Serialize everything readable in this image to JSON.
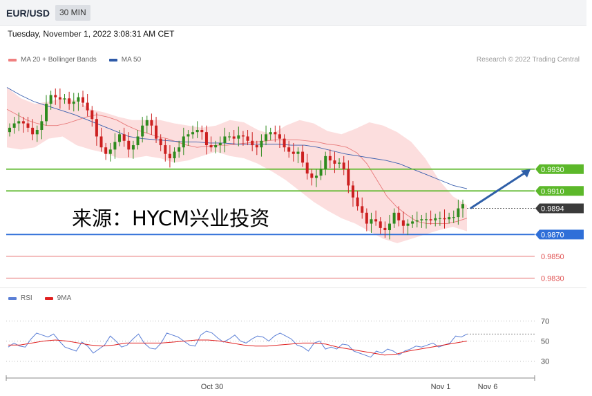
{
  "header": {
    "symbol": "EUR/USD",
    "timeframe": "30 MIN"
  },
  "datetime": "Tuesday, November 1, 2022 3:08:31 AM CET",
  "legend_main": [
    {
      "label": "MA 20 + Bollinger Bands",
      "color": "#f08080"
    },
    {
      "label": "MA 50",
      "color": "#2e5aa8"
    }
  ],
  "credit": "Research © 2022 Trading Central",
  "watermark": "来源：HYCM兴业投资",
  "legend_rsi": [
    {
      "label": "RSI",
      "color": "#5b7fd6"
    },
    {
      "label": "9MA",
      "color": "#e02020"
    }
  ],
  "colors": {
    "up": "#2e8b1e",
    "down": "#cc1f1f",
    "band": "#fbd3d3",
    "green_level": "#5cb82a",
    "blue_level": "#2f6fd8",
    "red_level": "#e05050",
    "current": "#444444"
  },
  "chart_data": [
    {
      "type": "candlestick",
      "ylim": [
        0.9822,
        1.0025
      ],
      "x_tick_labels": [
        "Oct 30",
        "Nov 1",
        "Nov 6"
      ],
      "levels": [
        {
          "value": 0.993,
          "label": "0.9930",
          "kind": "resistance"
        },
        {
          "value": 0.991,
          "label": "0.9910",
          "kind": "resistance"
        },
        {
          "value": 0.9894,
          "label": "0.9894",
          "kind": "current"
        },
        {
          "value": 0.987,
          "label": "0.9870",
          "kind": "pivot"
        },
        {
          "value": 0.985,
          "label": "0.9850",
          "kind": "support"
        },
        {
          "value": 0.983,
          "label": "0.9830",
          "kind": "support"
        }
      ],
      "forecast_arrow": {
        "from": 0.9894,
        "to": 0.993
      },
      "candles_close": [
        0.9968,
        0.9972,
        0.9974,
        0.9972,
        0.9968,
        0.9962,
        0.9966,
        0.9974,
        0.999,
        0.9998,
        0.9996,
        0.9994,
        0.9995,
        0.999,
        0.9992,
        0.9996,
        0.9991,
        0.9984,
        0.9976,
        0.996,
        0.995,
        0.9944,
        0.9948,
        0.9955,
        0.9962,
        0.9956,
        0.9948,
        0.9952,
        0.996,
        0.997,
        0.9975,
        0.997,
        0.9958,
        0.9952,
        0.9944,
        0.994,
        0.9946,
        0.995,
        0.996,
        0.9962,
        0.9964,
        0.9966,
        0.9964,
        0.9952,
        0.995,
        0.9952,
        0.9954,
        0.996,
        0.996,
        0.9958,
        0.9961,
        0.996,
        0.9956,
        0.9952,
        0.995,
        0.9956,
        0.9962,
        0.9964,
        0.9962,
        0.9958,
        0.995,
        0.9946,
        0.9944,
        0.9946,
        0.9936,
        0.9926,
        0.9922,
        0.9924,
        0.993,
        0.9942,
        0.9938,
        0.9935,
        0.9936,
        0.993,
        0.9915,
        0.9904,
        0.9896,
        0.989,
        0.988,
        0.9884,
        0.9882,
        0.9876,
        0.9874,
        0.988,
        0.989,
        0.9883,
        0.9878,
        0.988,
        0.9882,
        0.9883,
        0.9884,
        0.9884,
        0.9883,
        0.9885,
        0.9885,
        0.9884,
        0.9886,
        0.9886,
        0.9894,
        0.9898
      ],
      "ma20": [
        0.9985,
        0.998,
        0.9975,
        0.9972,
        0.997,
        0.997,
        0.9972,
        0.9975,
        0.9978,
        0.998,
        0.9978,
        0.9975,
        0.997,
        0.9966,
        0.9963,
        0.996,
        0.9958,
        0.9955,
        0.9952,
        0.995,
        0.9951,
        0.9952,
        0.9952,
        0.9953,
        0.9954,
        0.9955,
        0.9956,
        0.9957,
        0.9957,
        0.9957,
        0.9956,
        0.9955,
        0.9953,
        0.9952,
        0.995,
        0.9945,
        0.9935,
        0.992,
        0.9905,
        0.9895,
        0.9888,
        0.9882,
        0.988,
        0.988,
        0.988,
        0.9882,
        0.9885
      ],
      "ma50": [
        1.0005,
        0.9998,
        0.9992,
        0.9988,
        0.9984,
        0.998,
        0.9975,
        0.997,
        0.9965,
        0.996,
        0.9958,
        0.9957,
        0.9956,
        0.9955,
        0.9955,
        0.9954,
        0.9954,
        0.9953,
        0.9953,
        0.9953,
        0.9953,
        0.9952,
        0.9952,
        0.995,
        0.9947,
        0.9944,
        0.9942,
        0.994,
        0.9938,
        0.9935,
        0.993,
        0.9925,
        0.992,
        0.9915,
        0.9912
      ],
      "band_upper": [
        1.0005,
        0.9995,
        0.999,
        0.9992,
        0.9995,
        0.9993,
        0.9985,
        0.9982,
        0.9978,
        0.9975,
        0.9975,
        0.9975,
        0.9972,
        0.997,
        0.9968,
        0.997,
        0.9975,
        0.9973,
        0.9966,
        0.9962,
        0.997,
        0.9975,
        0.9972,
        0.9965,
        0.9962,
        0.9967,
        0.9973,
        0.997,
        0.9964,
        0.9955,
        0.994,
        0.992,
        0.9905,
        0.9897
      ],
      "band_lower": [
        0.995,
        0.9948,
        0.995,
        0.9958,
        0.996,
        0.9952,
        0.9948,
        0.9945,
        0.994,
        0.994,
        0.9942,
        0.994,
        0.9936,
        0.9938,
        0.9942,
        0.9946,
        0.9942,
        0.994,
        0.9935,
        0.9928,
        0.992,
        0.991,
        0.99,
        0.9892,
        0.9885,
        0.988,
        0.9873,
        0.9866,
        0.9862,
        0.9866,
        0.987,
        0.9874,
        0.9877,
        0.9873
      ]
    },
    {
      "type": "line",
      "title": "RSI",
      "ylim": [
        18,
        82
      ],
      "y_ticks": [
        30,
        50,
        70
      ],
      "series": [
        {
          "name": "RSI",
          "values": [
            44,
            48,
            45,
            44,
            52,
            58,
            56,
            54,
            57,
            50,
            44,
            42,
            40,
            49,
            45,
            38,
            42,
            46,
            55,
            50,
            44,
            46,
            52,
            57,
            48,
            43,
            42,
            48,
            58,
            56,
            54,
            50,
            46,
            45,
            56,
            60,
            58,
            53,
            49,
            52,
            56,
            50,
            48,
            52,
            55,
            54,
            50,
            55,
            58,
            55,
            52,
            46,
            44,
            40,
            48,
            50,
            42,
            44,
            42,
            47,
            46,
            40,
            38,
            36,
            34,
            40,
            38,
            42,
            40,
            36,
            40,
            42,
            45,
            44,
            46,
            48,
            44,
            46,
            48,
            55,
            54,
            57
          ]
        },
        {
          "name": "9MA",
          "values": [
            46,
            46,
            48,
            50,
            51,
            50,
            48,
            46,
            45,
            46,
            48,
            48,
            48,
            48,
            49,
            50,
            51,
            51,
            50,
            48,
            46,
            45,
            45,
            46,
            47,
            48,
            48,
            47,
            44,
            42,
            40,
            38,
            36,
            37,
            40,
            42,
            44,
            46,
            48,
            50
          ]
        }
      ]
    }
  ]
}
